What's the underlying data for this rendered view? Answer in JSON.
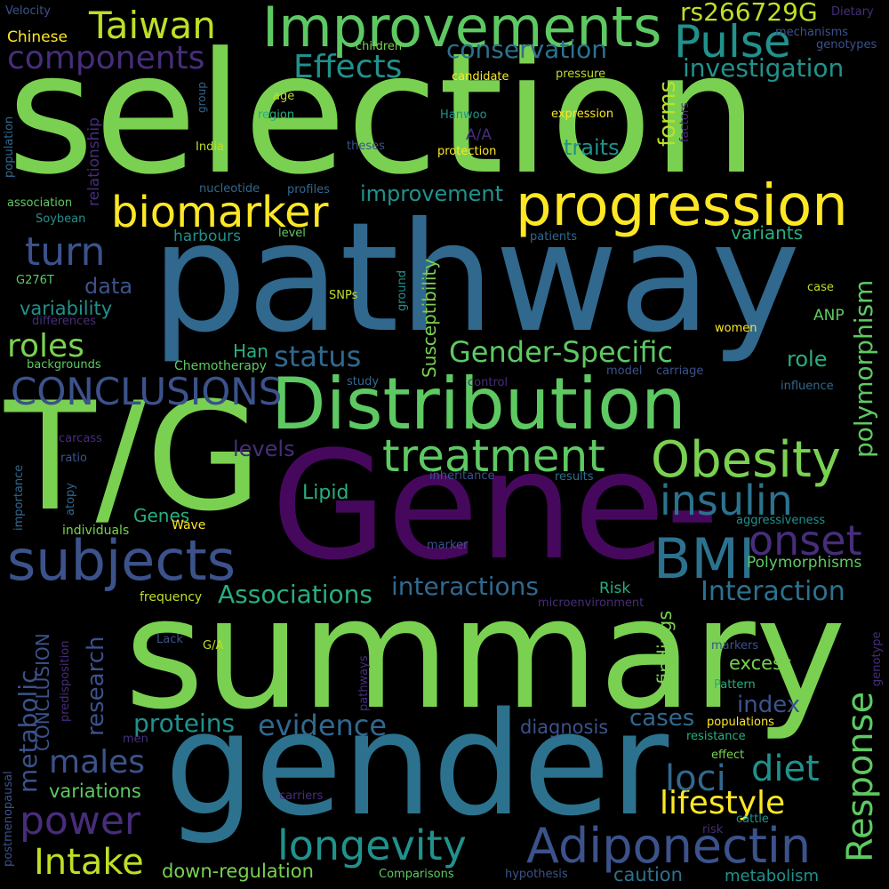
{
  "palette": {
    "background": "#000000",
    "dark_purple": "#440154",
    "indigo": "#472d7b",
    "slate_blue": "#3b528b",
    "steel_blue": "#2c728e",
    "teal": "#21918c",
    "green_teal": "#28ae80",
    "green": "#5ec962",
    "lime": "#addc30",
    "yellow": "#fde725"
  },
  "words": [
    {
      "text": "selection",
      "color": "#7ad151"
    },
    {
      "text": "pathway",
      "color": "#31688e"
    },
    {
      "text": "T/G",
      "color": "#7ad151"
    },
    {
      "text": "Gene-",
      "color": "#46085c"
    },
    {
      "text": "summary",
      "color": "#7ad151"
    },
    {
      "text": "gender",
      "color": "#2c728e"
    },
    {
      "text": "Distribution",
      "color": "#5ec962"
    },
    {
      "text": "progression",
      "color": "#fde725"
    },
    {
      "text": "Improvements",
      "color": "#5ec962"
    },
    {
      "text": "Taiwan",
      "color": "#bddf26"
    },
    {
      "text": "biomarker",
      "color": "#fde725"
    },
    {
      "text": "subjects",
      "color": "#3b528b"
    },
    {
      "text": "Obesity",
      "color": "#7ad151"
    },
    {
      "text": "treatment",
      "color": "#5ec962"
    },
    {
      "text": "CONCLUSIONS",
      "color": "#3b528b"
    },
    {
      "text": "Pulse",
      "color": "#21918c"
    },
    {
      "text": "BMI",
      "color": "#2c728e"
    },
    {
      "text": "Adiponectin",
      "color": "#3b528b"
    },
    {
      "text": "onset",
      "color": "#472d7b"
    },
    {
      "text": "insulin",
      "color": "#2c728e"
    },
    {
      "text": "longevity",
      "color": "#21918c"
    },
    {
      "text": "Effects",
      "color": "#21918c"
    },
    {
      "text": "components",
      "color": "#472d7b"
    },
    {
      "text": "turn",
      "color": "#3b528b"
    },
    {
      "text": "roles",
      "color": "#7ad151"
    },
    {
      "text": "Gender-Specific",
      "color": "#5ec962"
    },
    {
      "text": "status",
      "color": "#31688e"
    },
    {
      "text": "power",
      "color": "#472d7b"
    },
    {
      "text": "Intake",
      "color": "#bddf26"
    },
    {
      "text": "males",
      "color": "#3b528b"
    },
    {
      "text": "lifestyle",
      "color": "#fde725"
    },
    {
      "text": "diet",
      "color": "#21918c"
    },
    {
      "text": "loci",
      "color": "#31688e"
    },
    {
      "text": "Interaction",
      "color": "#2c728e"
    },
    {
      "text": "interactions",
      "color": "#31688e"
    },
    {
      "text": "Associations",
      "color": "#28ae80"
    },
    {
      "text": "evidence",
      "color": "#31688e"
    },
    {
      "text": "proteins",
      "color": "#21918c"
    },
    {
      "text": "rs266729G",
      "color": "#bddf26"
    },
    {
      "text": "conservation",
      "color": "#2c728e"
    },
    {
      "text": "investigation",
      "color": "#21918c"
    },
    {
      "text": "improvement",
      "color": "#21918c"
    },
    {
      "text": "traits",
      "color": "#21918c"
    },
    {
      "text": "forms",
      "color": "#bddf26"
    },
    {
      "text": "variants",
      "color": "#28ae80"
    },
    {
      "text": "data",
      "color": "#3b528b"
    },
    {
      "text": "variability",
      "color": "#21918c"
    },
    {
      "text": "role",
      "color": "#28ae80"
    },
    {
      "text": "Han",
      "color": "#28ae80"
    },
    {
      "text": "levels",
      "color": "#472d7b"
    },
    {
      "text": "Lipid",
      "color": "#28ae80"
    },
    {
      "text": "Genes",
      "color": "#28ae80"
    },
    {
      "text": "ANP",
      "color": "#5ec962"
    },
    {
      "text": "Polymorphisms",
      "color": "#5ec962"
    },
    {
      "text": "Risk",
      "color": "#28ae80"
    },
    {
      "text": "index",
      "color": "#3b528b"
    },
    {
      "text": "excess",
      "color": "#7ad151"
    },
    {
      "text": "cases",
      "color": "#31688e"
    },
    {
      "text": "diagnosis",
      "color": "#3b528b"
    },
    {
      "text": "variations",
      "color": "#5ec962"
    },
    {
      "text": "down-regulation",
      "color": "#7ad151"
    },
    {
      "text": "caution",
      "color": "#2c728e"
    },
    {
      "text": "metabolism",
      "color": "#21918c"
    },
    {
      "text": "Chinese",
      "color": "#fde725"
    },
    {
      "text": "harbours",
      "color": "#21918c"
    },
    {
      "text": "A/A",
      "color": "#472d7b"
    },
    {
      "text": "Wave",
      "color": "#fde725"
    },
    {
      "text": "individuals",
      "color": "#7ad151"
    },
    {
      "text": "frequency",
      "color": "#bddf26"
    },
    {
      "text": "Chemotherapy",
      "color": "#5ec962"
    },
    {
      "text": "Velocity",
      "color": "#3b528b"
    },
    {
      "text": "Dietary",
      "color": "#472d7b"
    },
    {
      "text": "mechanisms",
      "color": "#3b528b"
    },
    {
      "text": "genotypes",
      "color": "#3b528b"
    },
    {
      "text": "children",
      "color": "#7ad151"
    },
    {
      "text": "candidate",
      "color": "#fde725"
    },
    {
      "text": "pressure",
      "color": "#bddf26"
    },
    {
      "text": "age",
      "color": "#bddf26"
    },
    {
      "text": "region",
      "color": "#28ae80"
    },
    {
      "text": "Hanwoo",
      "color": "#21918c"
    },
    {
      "text": "expression",
      "color": "#fde725"
    },
    {
      "text": "India",
      "color": "#bddf26"
    },
    {
      "text": "theses",
      "color": "#3b528b"
    },
    {
      "text": "protection",
      "color": "#fde725"
    },
    {
      "text": "nucleotide",
      "color": "#31688e"
    },
    {
      "text": "profiles",
      "color": "#31688e"
    },
    {
      "text": "association",
      "color": "#5ec962"
    },
    {
      "text": "Soybean",
      "color": "#21918c"
    },
    {
      "text": "patients",
      "color": "#31688e"
    },
    {
      "text": "level",
      "color": "#5ec962"
    },
    {
      "text": "G276T",
      "color": "#5ec962"
    },
    {
      "text": "differences",
      "color": "#472d7b"
    },
    {
      "text": "SNPs",
      "color": "#bddf26"
    },
    {
      "text": "case",
      "color": "#bddf26"
    },
    {
      "text": "women",
      "color": "#fde725"
    },
    {
      "text": "backgrounds",
      "color": "#5ec962"
    },
    {
      "text": "study",
      "color": "#31688e"
    },
    {
      "text": "control",
      "color": "#472d7b"
    },
    {
      "text": "model",
      "color": "#3b528b"
    },
    {
      "text": "carriage",
      "color": "#3b528b"
    },
    {
      "text": "influence",
      "color": "#31688e"
    },
    {
      "text": "carcass",
      "color": "#472d7b"
    },
    {
      "text": "ratio",
      "color": "#3b528b"
    },
    {
      "text": "inheritance",
      "color": "#3b528b"
    },
    {
      "text": "results",
      "color": "#2c728e"
    },
    {
      "text": "aggressiveness",
      "color": "#21918c"
    },
    {
      "text": "marker",
      "color": "#3b528b"
    },
    {
      "text": "microenvironment",
      "color": "#472d7b"
    },
    {
      "text": "Lack",
      "color": "#3b528b"
    },
    {
      "text": "G/A",
      "color": "#bddf26"
    },
    {
      "text": "markers",
      "color": "#3b528b"
    },
    {
      "text": "Pattern",
      "color": "#28ae80"
    },
    {
      "text": "populations",
      "color": "#fde725"
    },
    {
      "text": "resistance",
      "color": "#28ae80"
    },
    {
      "text": "men",
      "color": "#472d7b"
    },
    {
      "text": "effect",
      "color": "#7ad151"
    },
    {
      "text": "cattle",
      "color": "#21918c"
    },
    {
      "text": "carriers",
      "color": "#472d7b"
    },
    {
      "text": "risk",
      "color": "#472d7b"
    },
    {
      "text": "Comparisons",
      "color": "#5ec962"
    },
    {
      "text": "hypothesis",
      "color": "#3b528b"
    },
    {
      "text": "Response",
      "color": "#5ec962"
    },
    {
      "text": "polymorphism",
      "color": "#5ec962"
    },
    {
      "text": "Susceptibility",
      "color": "#7ad151"
    },
    {
      "text": "metabolic",
      "color": "#3b528b"
    },
    {
      "text": "CONCLUSION",
      "color": "#3b528b"
    },
    {
      "text": "research",
      "color": "#3b528b"
    },
    {
      "text": "findings",
      "color": "#7ad151"
    },
    {
      "text": "relationship",
      "color": "#472d7b"
    },
    {
      "text": "population",
      "color": "#31688e"
    },
    {
      "text": "group",
      "color": "#31688e"
    },
    {
      "text": "ground",
      "color": "#21918c"
    },
    {
      "text": "factors",
      "color": "#472d7b"
    },
    {
      "text": "importance",
      "color": "#31688e"
    },
    {
      "text": "atopy",
      "color": "#31688e"
    },
    {
      "text": "predisposition",
      "color": "#472d7b"
    },
    {
      "text": "pathways",
      "color": "#472d7b"
    },
    {
      "text": "genotype",
      "color": "#472d7b"
    },
    {
      "text": "postmenopausal",
      "color": "#3b528b"
    }
  ]
}
